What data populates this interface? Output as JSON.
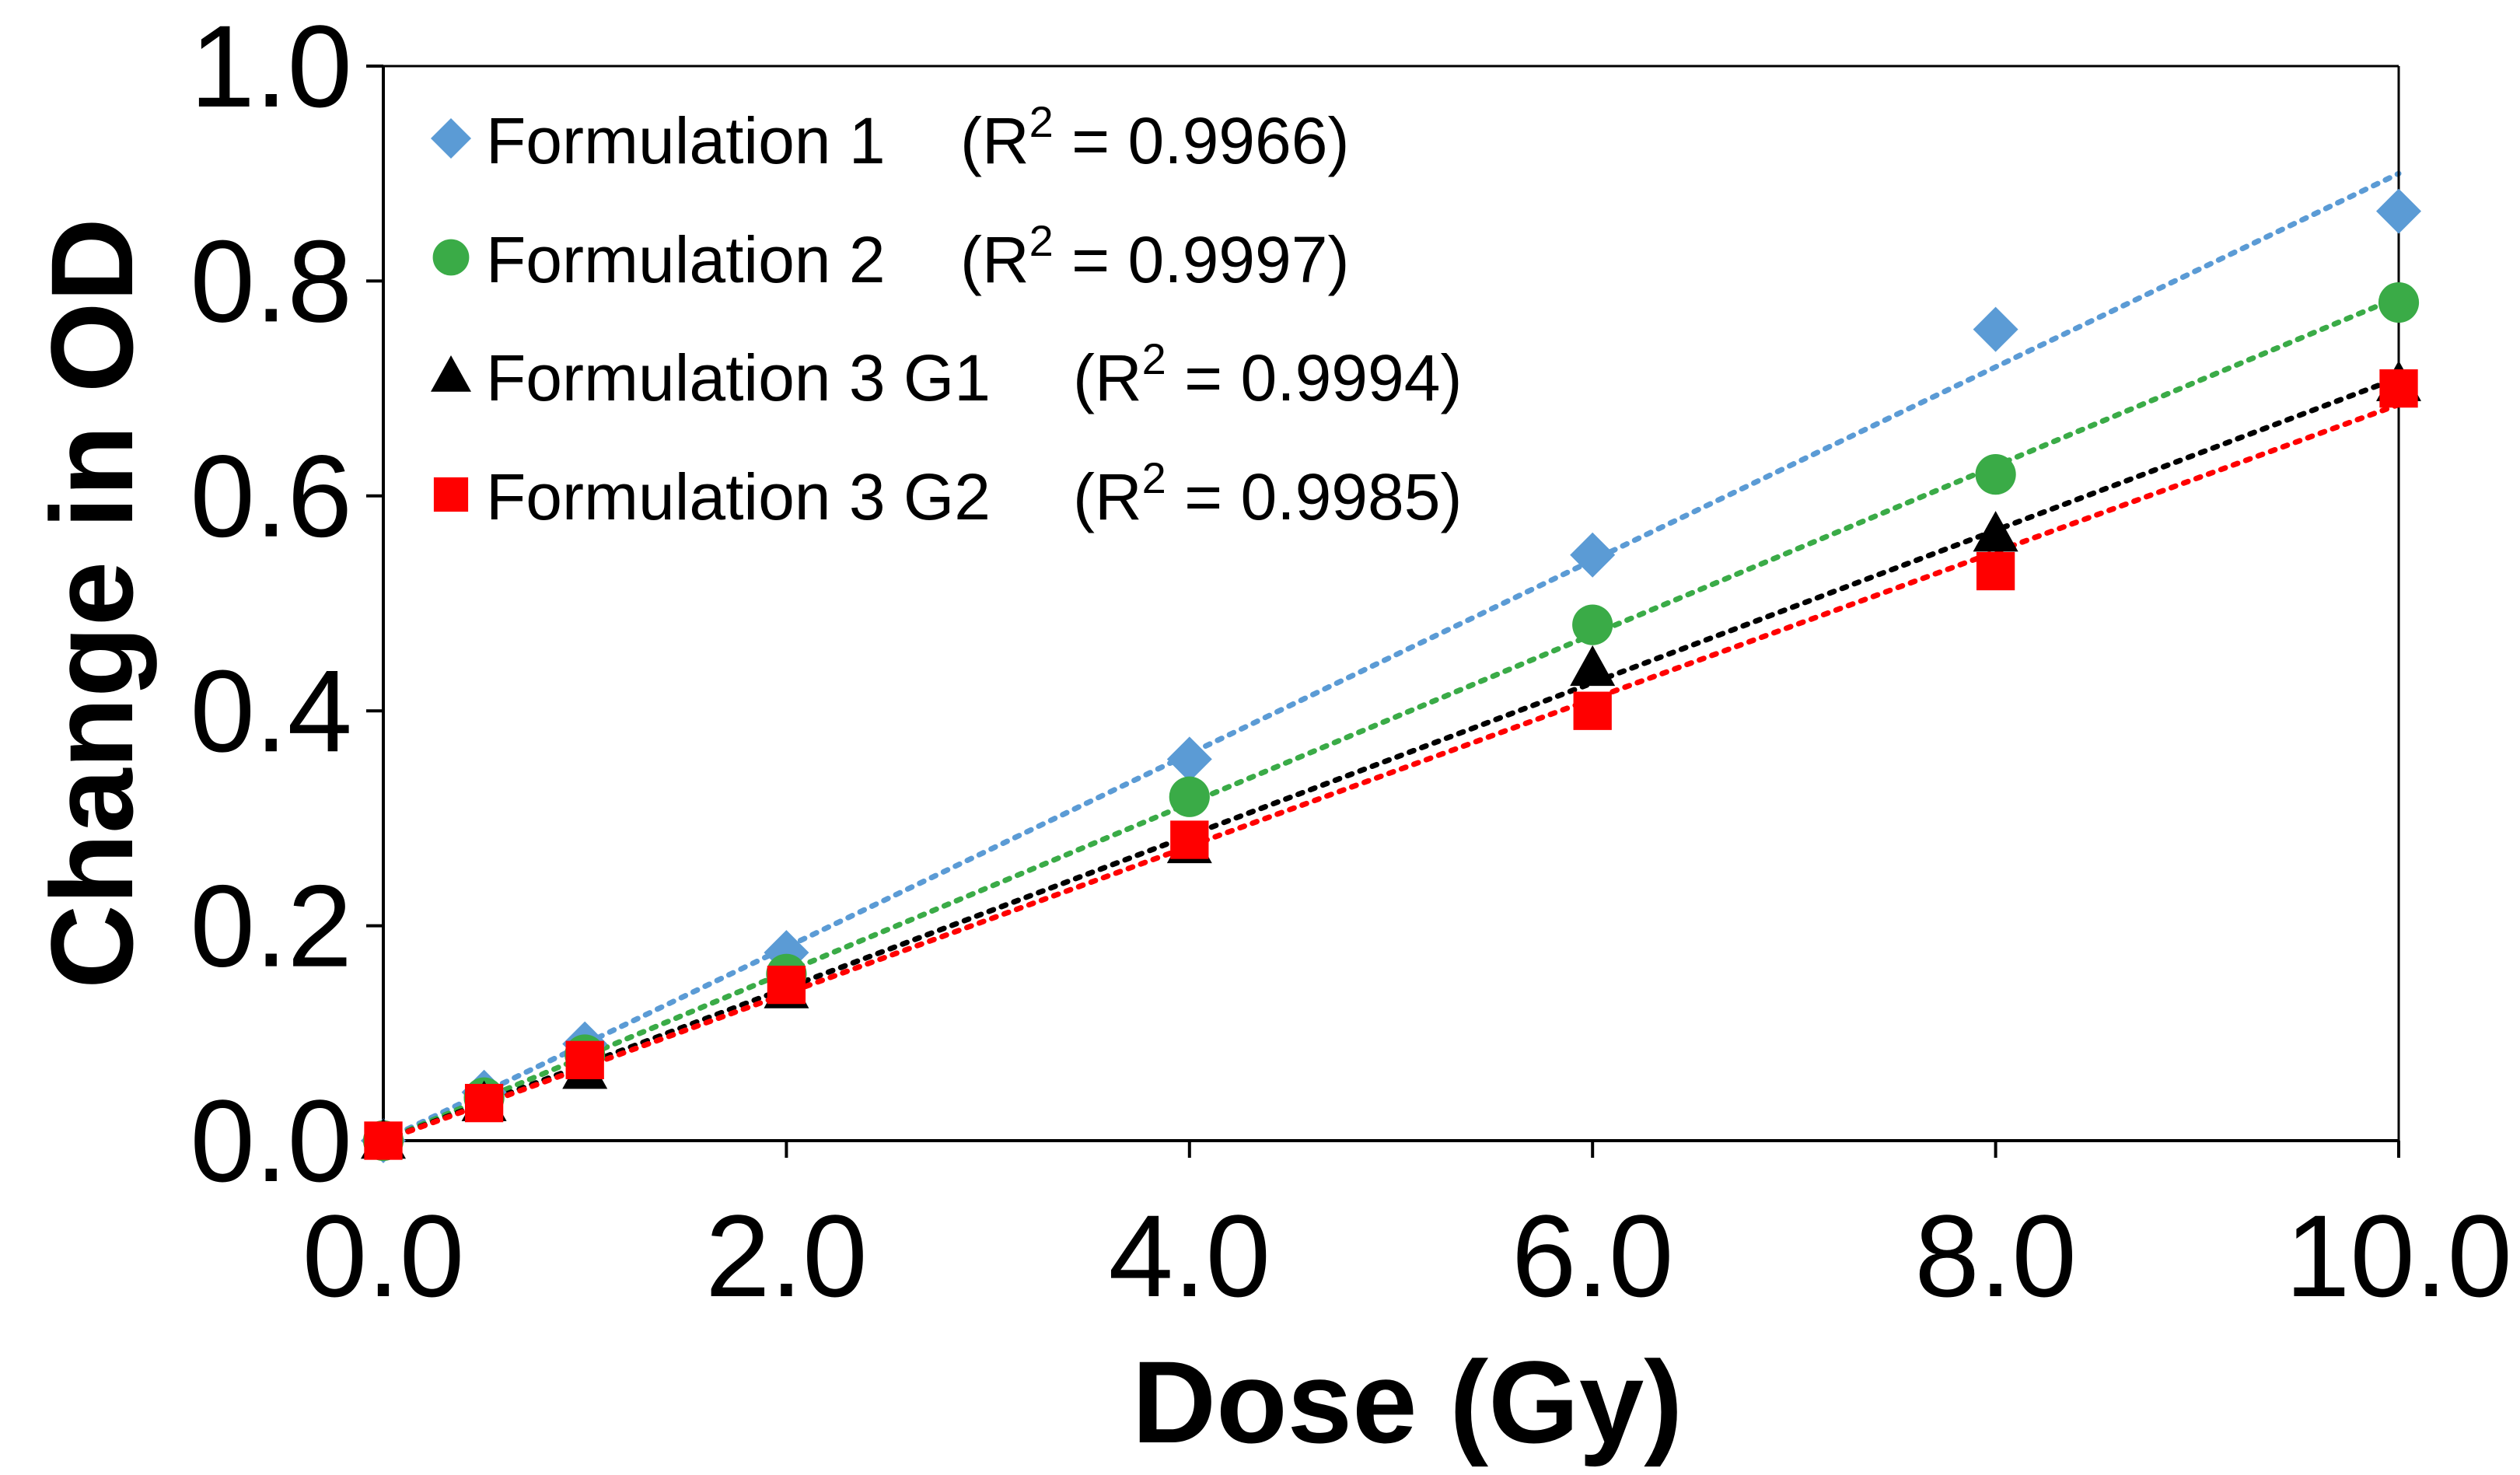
{
  "chart_data": {
    "type": "scatter",
    "title": "",
    "xlabel": "Dose (Gy)",
    "ylabel": "Change in OD",
    "xlim": [
      0,
      10
    ],
    "ylim": [
      0,
      1
    ],
    "xticks": [
      "0.0",
      "2.0",
      "4.0",
      "6.0",
      "8.0",
      "10.0"
    ],
    "yticks": [
      "0.0",
      "0.2",
      "0.4",
      "0.6",
      "0.8",
      "1.0"
    ],
    "grid": false,
    "legend_position": "top-left",
    "x": [
      0,
      0.5,
      1,
      2,
      4,
      6,
      8,
      10
    ],
    "series": [
      {
        "name": "Formulation 1",
        "r2_label": "(R",
        "r2_sup": "2",
        "r2_value": " = 0.9966)",
        "color": "#5b9bd5",
        "marker": "diamond",
        "values": [
          0.0,
          0.045,
          0.09,
          0.175,
          0.355,
          0.545,
          0.755,
          0.865
        ],
        "trend_end": 0.9
      },
      {
        "name": "Formulation 2",
        "r2_label": "(R",
        "r2_sup": "2",
        "r2_value": " = 0.9997)",
        "color": "#3aab47",
        "marker": "circle",
        "values": [
          0.0,
          0.04,
          0.08,
          0.155,
          0.32,
          0.48,
          0.62,
          0.78
        ],
        "trend_end": 0.785
      },
      {
        "name": "Formulation 3 G1",
        "r2_label": "(R",
        "r2_sup": "2",
        "r2_value": " = 0.9994)",
        "color": "#000000",
        "marker": "triangle",
        "values": [
          0.0,
          0.035,
          0.065,
          0.14,
          0.275,
          0.44,
          0.565,
          0.705
        ],
        "trend_end": 0.71
      },
      {
        "name": "Formulation 3 G2",
        "r2_label": "(R",
        "r2_sup": "2",
        "r2_value": " = 0.9985)",
        "color": "#ff0000",
        "marker": "square",
        "values": [
          0.0,
          0.035,
          0.075,
          0.145,
          0.28,
          0.4,
          0.53,
          0.7
        ],
        "trend_end": 0.685
      }
    ]
  }
}
